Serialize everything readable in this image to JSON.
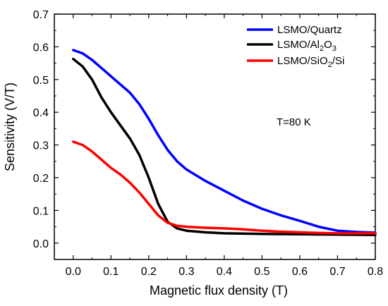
{
  "chart_data": {
    "type": "line",
    "xlabel": "Magnetic flux density (T)",
    "ylabel": "Sensitivity (V/T)",
    "xlim": [
      -0.05,
      0.8
    ],
    "ylim": [
      -0.05,
      0.7
    ],
    "xticks": [
      "0.0",
      "0.1",
      "0.2",
      "0.3",
      "0.4",
      "0.5",
      "0.6",
      "0.7",
      "0.8"
    ],
    "yticks": [
      "0.0",
      "0.1",
      "0.2",
      "0.3",
      "0.4",
      "0.5",
      "0.6",
      "0.7"
    ],
    "grid": false,
    "legend_position": "top-right",
    "annotation": "T=80 K",
    "series": [
      {
        "name": "LSMO/Quartz",
        "color": "#0000ff",
        "points": [
          [
            0.0,
            0.59
          ],
          [
            0.025,
            0.58
          ],
          [
            0.05,
            0.56
          ],
          [
            0.075,
            0.535
          ],
          [
            0.1,
            0.51
          ],
          [
            0.125,
            0.485
          ],
          [
            0.15,
            0.46
          ],
          [
            0.175,
            0.425
          ],
          [
            0.2,
            0.38
          ],
          [
            0.225,
            0.33
          ],
          [
            0.25,
            0.285
          ],
          [
            0.275,
            0.25
          ],
          [
            0.3,
            0.225
          ],
          [
            0.35,
            0.19
          ],
          [
            0.4,
            0.16
          ],
          [
            0.45,
            0.13
          ],
          [
            0.5,
            0.105
          ],
          [
            0.55,
            0.085
          ],
          [
            0.6,
            0.068
          ],
          [
            0.65,
            0.05
          ],
          [
            0.7,
            0.038
          ],
          [
            0.75,
            0.034
          ],
          [
            0.8,
            0.032
          ]
        ]
      },
      {
        "name": "LSMO/Al2O3",
        "name_main": "LSMO/Al",
        "name_sub1": "2",
        "name_mid": "O",
        "name_sub2": "3",
        "color": "#000000",
        "points": [
          [
            0.0,
            0.563
          ],
          [
            0.025,
            0.54
          ],
          [
            0.05,
            0.5
          ],
          [
            0.075,
            0.445
          ],
          [
            0.1,
            0.4
          ],
          [
            0.125,
            0.36
          ],
          [
            0.15,
            0.32
          ],
          [
            0.175,
            0.27
          ],
          [
            0.2,
            0.2
          ],
          [
            0.225,
            0.12
          ],
          [
            0.25,
            0.065
          ],
          [
            0.275,
            0.045
          ],
          [
            0.3,
            0.038
          ],
          [
            0.35,
            0.033
          ],
          [
            0.4,
            0.03
          ],
          [
            0.5,
            0.028
          ],
          [
            0.6,
            0.027
          ],
          [
            0.7,
            0.026
          ],
          [
            0.8,
            0.025
          ]
        ]
      },
      {
        "name": "LSMO/SiO2/Si",
        "name_main": "LSMO/SiO",
        "name_sub": "2",
        "name_tail": "/Si",
        "color": "#ff0000",
        "points": [
          [
            0.0,
            0.31
          ],
          [
            0.025,
            0.3
          ],
          [
            0.05,
            0.28
          ],
          [
            0.075,
            0.255
          ],
          [
            0.1,
            0.23
          ],
          [
            0.125,
            0.21
          ],
          [
            0.15,
            0.185
          ],
          [
            0.175,
            0.155
          ],
          [
            0.2,
            0.12
          ],
          [
            0.225,
            0.085
          ],
          [
            0.25,
            0.062
          ],
          [
            0.275,
            0.053
          ],
          [
            0.3,
            0.05
          ],
          [
            0.35,
            0.047
          ],
          [
            0.4,
            0.045
          ],
          [
            0.45,
            0.042
          ],
          [
            0.5,
            0.038
          ],
          [
            0.55,
            0.035
          ],
          [
            0.6,
            0.033
          ],
          [
            0.65,
            0.031
          ],
          [
            0.7,
            0.03
          ],
          [
            0.75,
            0.03
          ],
          [
            0.8,
            0.03
          ]
        ]
      }
    ]
  }
}
